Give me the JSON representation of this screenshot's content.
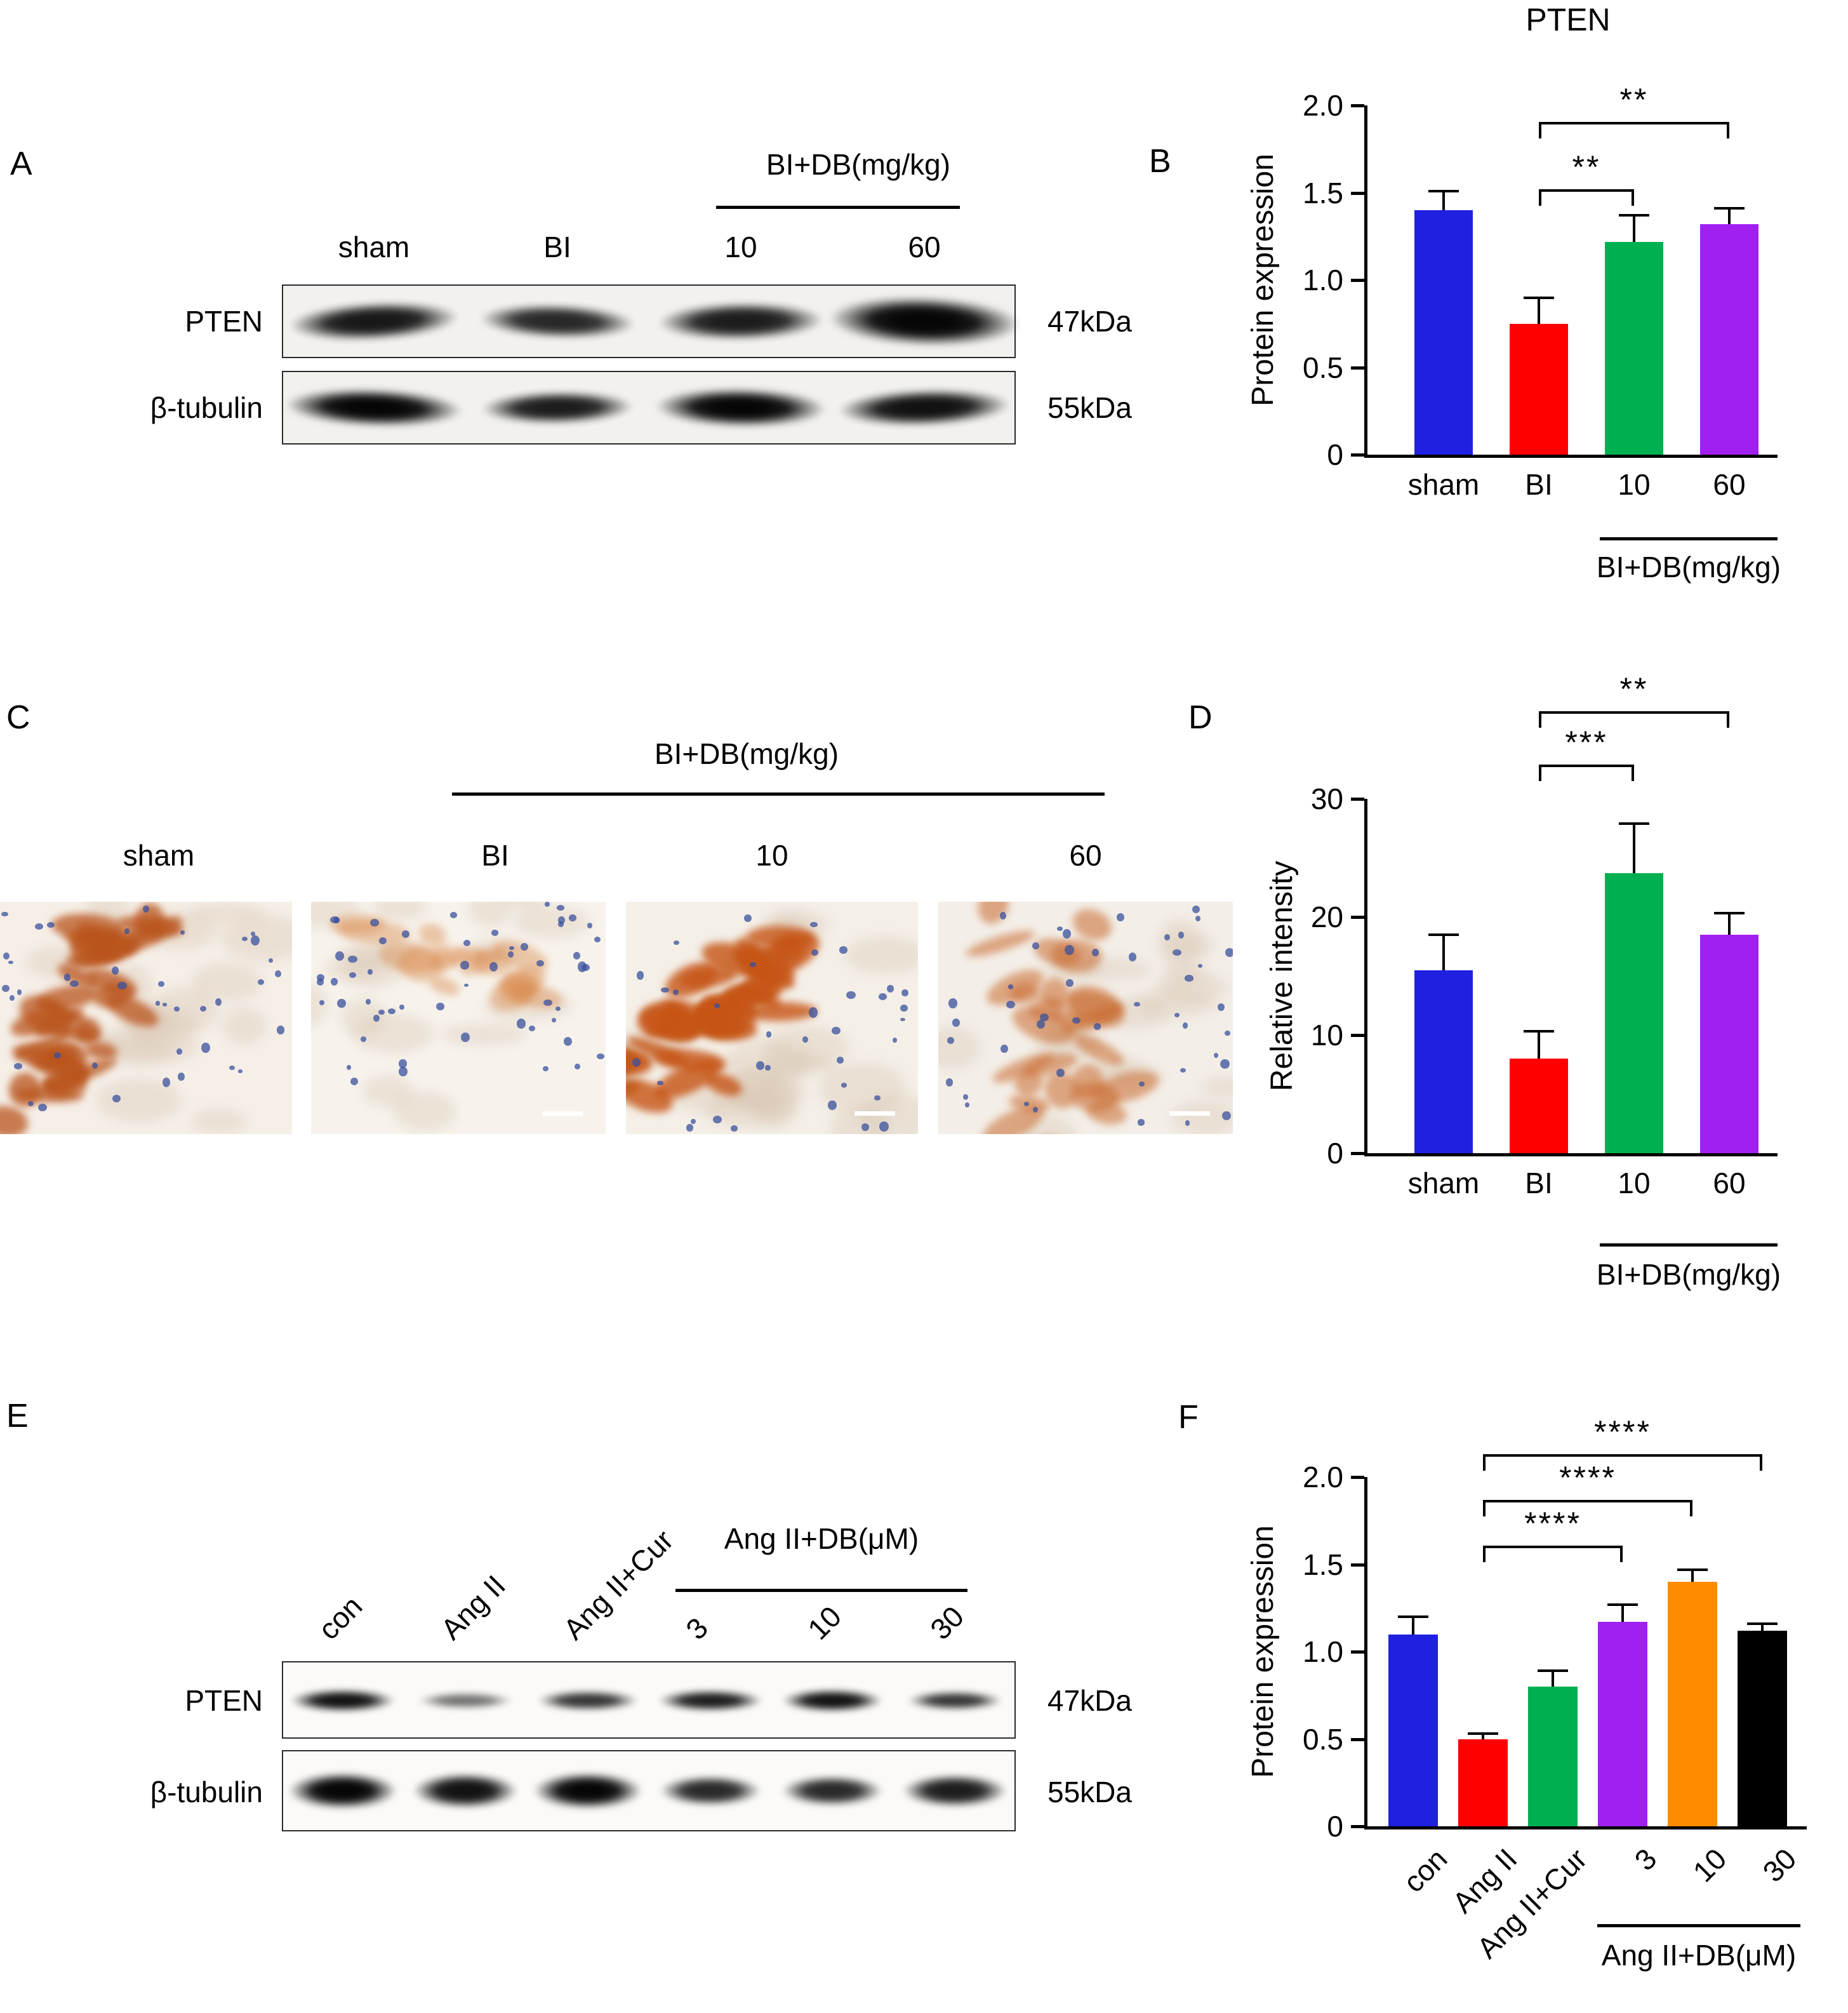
{
  "figure": {
    "panels": {
      "A": {
        "letter": "A",
        "group_label": "BI+DB(mg/kg)",
        "lanes": [
          "sham",
          "BI",
          "10",
          "60"
        ],
        "rows": [
          {
            "protein": "PTEN",
            "mw": "47kDa"
          },
          {
            "protein": "β-tubulin",
            "mw": "55kDa"
          }
        ]
      },
      "B": {
        "letter": "B"
      },
      "C": {
        "letter": "C",
        "group_label": "BI+DB(mg/kg)",
        "lanes": [
          "sham",
          "BI",
          "10",
          "60"
        ]
      },
      "D": {
        "letter": "D"
      },
      "E": {
        "letter": "E",
        "group_label": "Ang II+DB(μM)",
        "lanes": [
          "con",
          "Ang II",
          "Ang II+Cur",
          "3",
          "10",
          "30"
        ],
        "rows": [
          {
            "protein": "PTEN",
            "mw": "47kDa"
          },
          {
            "protein": "β-tubulin",
            "mw": "55kDa"
          }
        ]
      },
      "F": {
        "letter": "F"
      }
    }
  },
  "chart_data": [
    {
      "id": "B",
      "type": "bar",
      "title": "PTEN",
      "ylabel": "Protein expression",
      "categories": [
        "sham",
        "BI",
        "10",
        "60"
      ],
      "values": [
        1.4,
        0.75,
        1.22,
        1.32
      ],
      "errors": [
        0.11,
        0.15,
        0.15,
        0.09
      ],
      "colors": [
        "#2020e0",
        "#fe0000",
        "#00b050",
        "#a020f0"
      ],
      "ylim": [
        0,
        2.0
      ],
      "yticks": [
        0,
        0.5,
        1.0,
        1.5,
        2.0
      ],
      "ytick_labels": [
        "0",
        "0.5",
        "1.0",
        "1.5",
        "2.0"
      ],
      "group_label": "BI+DB(mg/kg)",
      "group_members": [
        "10",
        "60"
      ],
      "significance": [
        {
          "from": "BI",
          "to": "10",
          "label": "**"
        },
        {
          "from": "BI",
          "to": "60",
          "label": "**"
        }
      ]
    },
    {
      "id": "D",
      "type": "bar",
      "title": "",
      "ylabel": "Relative intensity",
      "categories": [
        "sham",
        "BI",
        "10",
        "60"
      ],
      "values": [
        15.5,
        8.0,
        23.7,
        18.5
      ],
      "errors": [
        3.0,
        2.3,
        4.2,
        1.8
      ],
      "colors": [
        "#2020e0",
        "#fe0000",
        "#00b050",
        "#a020f0"
      ],
      "ylim": [
        0,
        30
      ],
      "yticks": [
        0,
        10,
        20,
        30
      ],
      "ytick_labels": [
        "0",
        "10",
        "20",
        "30"
      ],
      "group_label": "BI+DB(mg/kg)",
      "group_members": [
        "10",
        "60"
      ],
      "significance": [
        {
          "from": "BI",
          "to": "10",
          "label": "***"
        },
        {
          "from": "BI",
          "to": "60",
          "label": "**"
        }
      ]
    },
    {
      "id": "F",
      "type": "bar",
      "title": "",
      "ylabel": "Protein expression",
      "categories": [
        "con",
        "Ang II",
        "Ang II+Cur",
        "3",
        "10",
        "30"
      ],
      "values": [
        1.1,
        0.5,
        0.8,
        1.17,
        1.4,
        1.12
      ],
      "errors": [
        0.1,
        0.03,
        0.09,
        0.1,
        0.07,
        0.04
      ],
      "colors": [
        "#2020e0",
        "#fe0000",
        "#00b050",
        "#a020f0",
        "#ff8c00",
        "#000000"
      ],
      "ylim": [
        0,
        2.0
      ],
      "yticks": [
        0,
        0.5,
        1.0,
        1.5,
        2.0
      ],
      "ytick_labels": [
        "0",
        "0.5",
        "1.0",
        "1.5",
        "2.0"
      ],
      "group_label": "Ang II+DB(μM)",
      "group_members": [
        "3",
        "10",
        "30"
      ],
      "significance": [
        {
          "from": "Ang II",
          "to": "3",
          "label": "****"
        },
        {
          "from": "Ang II",
          "to": "10",
          "label": "****"
        },
        {
          "from": "Ang II",
          "to": "30",
          "label": "****"
        }
      ]
    }
  ]
}
